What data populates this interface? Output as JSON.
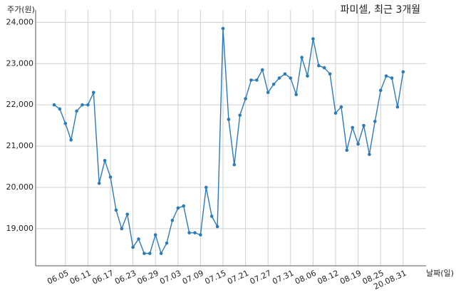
{
  "chart_data": {
    "type": "line",
    "title": "파미셀, 최근 3개월",
    "y_label": "주가(원)",
    "x_label": "날짜(일)",
    "categories": [
      null,
      null,
      "06.05",
      null,
      null,
      null,
      "06.11",
      null,
      null,
      null,
      "06.17",
      null,
      null,
      null,
      "06.23",
      null,
      null,
      null,
      "06.29",
      null,
      null,
      null,
      "07.03",
      null,
      null,
      null,
      "07.09",
      null,
      null,
      null,
      "07.15",
      null,
      null,
      null,
      "07.21",
      null,
      null,
      null,
      "07.27",
      null,
      null,
      null,
      "07.31",
      null,
      null,
      null,
      "08.06",
      null,
      null,
      null,
      "08.12",
      null,
      null,
      null,
      "08.19",
      null,
      null,
      null,
      "08.25",
      null,
      null,
      null,
      "20.08.31"
    ],
    "series": [
      {
        "name": "주가",
        "color": "#2b7bb9",
        "values": [
          22000,
          21900,
          21550,
          21150,
          21850,
          22000,
          22000,
          22300,
          20100,
          20650,
          20250,
          19450,
          19000,
          19350,
          18550,
          18750,
          18400,
          18400,
          18850,
          18400,
          18650,
          19200,
          19500,
          19550,
          18900,
          18900,
          18850,
          20000,
          19300,
          19050,
          23850,
          21650,
          20550,
          21750,
          22150,
          22600,
          22600,
          22850,
          22300,
          22500,
          22650,
          22750,
          22650,
          22250,
          23150,
          22700,
          23600,
          22950,
          22900,
          22750,
          21800,
          21950,
          20900,
          21450,
          21050,
          21500,
          20800,
          21600,
          22350,
          22700,
          22650,
          21950,
          22800
        ]
      }
    ],
    "ylim": [
      18100,
      24300
    ],
    "yticks": [
      {
        "value": 19000,
        "label": "19,000"
      },
      {
        "value": 20000,
        "label": "20,000"
      },
      {
        "value": 21000,
        "label": "21,000"
      },
      {
        "value": 22000,
        "label": "22,000"
      },
      {
        "value": 23000,
        "label": "23,000"
      },
      {
        "value": 24000,
        "label": "24,000"
      }
    ],
    "grid": true
  }
}
